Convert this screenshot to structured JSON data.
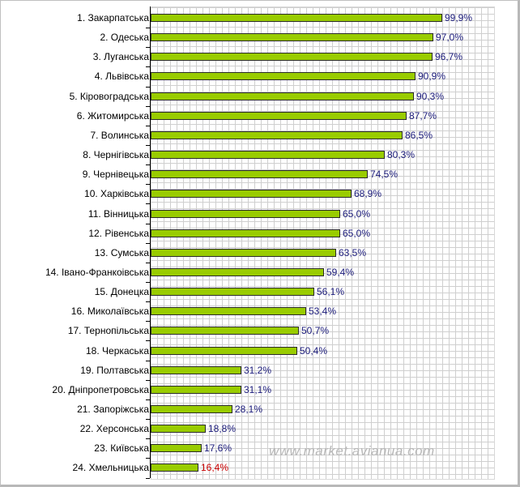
{
  "chart_data": {
    "type": "bar",
    "orientation": "horizontal",
    "categories": [
      "1. Закарпатська",
      "2. Одеська",
      "3. Луганська",
      "4. Львівська",
      "5. Кіровоградська",
      "6. Житомирська",
      "7. Волинська",
      "8. Чернігівська",
      "9. Чернівецька",
      "10. Харківська",
      "11. Вінницька",
      "12. Рівенська",
      "13. Сумська",
      "14. Івано-Франкоівська",
      "15. Донецка",
      "16. Миколаївська",
      "17. Тернопільська",
      "18. Черкаська",
      "19. Полтавська",
      "20. Дніпропетровська",
      "21. Запоріжська",
      "22. Херсонська",
      "23. Київська",
      "24. Хмельницька"
    ],
    "values": [
      99.9,
      97.0,
      96.7,
      90.9,
      90.3,
      87.7,
      86.5,
      80.3,
      74.5,
      68.9,
      65.0,
      65.0,
      63.5,
      59.4,
      56.1,
      53.4,
      50.7,
      50.4,
      31.2,
      31.1,
      28.1,
      18.8,
      17.6,
      16.4
    ],
    "value_labels": [
      "99,9%",
      "97,0%",
      "96,7%",
      "90,9%",
      "90,3%",
      "87,7%",
      "86,5%",
      "80,3%",
      "74,5%",
      "68,9%",
      "65,0%",
      "65,0%",
      "63,5%",
      "59,4%",
      "56,1%",
      "53,4%",
      "50,7%",
      "50,4%",
      "31,2%",
      "31,1%",
      "28,1%",
      "18,8%",
      "17,6%",
      "16,4%"
    ],
    "highlighted_index": 23,
    "xlim": [
      0,
      100
    ],
    "grid": true,
    "title": "",
    "xlabel": "",
    "ylabel": "",
    "colors": {
      "bar": "#99cc00",
      "bar_border": "#2a2a2a",
      "value_label": "#1a1a7a",
      "highlight_label": "#cc0000",
      "grid": "#cfcfcf"
    }
  },
  "watermark": "www.market.avianua.com"
}
